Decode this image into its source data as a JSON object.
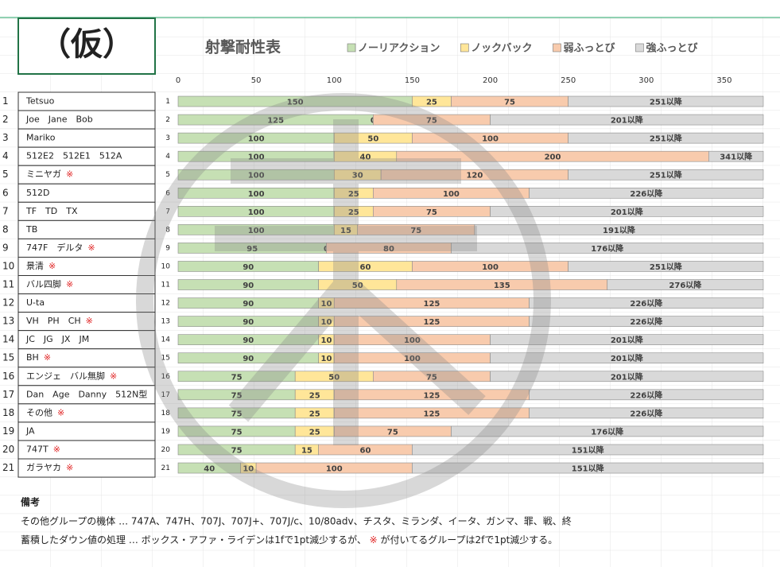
{
  "header": {
    "stamp": "（仮）"
  },
  "chart_data": {
    "type": "bar",
    "orientation": "horizontal",
    "stacked": true,
    "title": "射撃耐性表",
    "categories": [
      "1",
      "2",
      "3",
      "4",
      "5",
      "6",
      "7",
      "8",
      "9",
      "10",
      "11",
      "12",
      "13",
      "14",
      "15",
      "16",
      "17",
      "18",
      "19",
      "20",
      "21"
    ],
    "row_names": [
      {
        "num": "1",
        "name": "Tetsuo"
      },
      {
        "num": "2",
        "name": "Joe　Jane　Bob"
      },
      {
        "num": "3",
        "name": "Mariko"
      },
      {
        "num": "4",
        "name": "512E2　512E1　512A"
      },
      {
        "num": "5",
        "name": "ミニヤガ",
        "mark": "※"
      },
      {
        "num": "6",
        "name": "512D"
      },
      {
        "num": "7",
        "name": "TF　TD　TX"
      },
      {
        "num": "8",
        "name": "TB"
      },
      {
        "num": "9",
        "name": "747F　デルタ",
        "mark": "※"
      },
      {
        "num": "10",
        "name": "景清",
        "mark": "※"
      },
      {
        "num": "11",
        "name": "バル四脚",
        "mark": "※"
      },
      {
        "num": "12",
        "name": "U-ta"
      },
      {
        "num": "13",
        "name": "VH　PH　CH",
        "mark": "※"
      },
      {
        "num": "14",
        "name": "JC　JG　JX　JM"
      },
      {
        "num": "15",
        "name": "BH",
        "mark": "※"
      },
      {
        "num": "16",
        "name": "エンジェ　バル無脚",
        "mark": "※"
      },
      {
        "num": "17",
        "name": "Dan　Age　Danny　512N型"
      },
      {
        "num": "18",
        "name": "その他",
        "mark": "※"
      },
      {
        "num": "19",
        "name": "JA"
      },
      {
        "num": "20",
        "name": "747T",
        "mark": "※"
      },
      {
        "num": "21",
        "name": "ガラヤカ",
        "mark": "※"
      }
    ],
    "series": [
      {
        "name": "ノーリアクション",
        "color": "#c6e0b4",
        "values": [
          150,
          125,
          100,
          100,
          100,
          100,
          100,
          100,
          95,
          90,
          90,
          90,
          90,
          90,
          90,
          75,
          75,
          75,
          75,
          75,
          40
        ]
      },
      {
        "name": "ノックバック",
        "color": "#ffe699",
        "values": [
          25,
          0,
          50,
          40,
          30,
          25,
          25,
          15,
          0,
          60,
          50,
          10,
          10,
          10,
          10,
          50,
          25,
          25,
          25,
          15,
          10
        ]
      },
      {
        "name": "弱ふっとび",
        "color": "#f8cbad",
        "values": [
          75,
          75,
          100,
          200,
          120,
          100,
          75,
          75,
          80,
          100,
          135,
          125,
          125,
          100,
          100,
          75,
          125,
          125,
          75,
          60,
          100
        ]
      },
      {
        "name": "強ふっとび",
        "color": "#d9d9d9",
        "labels": [
          "251以降",
          "201以降",
          "251以降",
          "341以降",
          "251以降",
          "226以降",
          "201以降",
          "191以降",
          "176以降",
          "251以降",
          "276以降",
          "226以降",
          "226以降",
          "201以降",
          "201以降",
          "201以降",
          "226以降",
          "226以降",
          "176以降",
          "151以降",
          "151以降"
        ]
      }
    ],
    "xlim": [
      0,
      375
    ],
    "xticks": [
      0,
      50,
      100,
      150,
      200,
      250,
      300,
      350
    ],
    "grid": false,
    "legend": "top"
  },
  "notes": {
    "title": "備考",
    "lines": [
      "その他グループの機体 … 747A、747H、707J、707J+、707J/c、10/80adv、チスタ、ミランダ、イータ、ガンマ、罪、戦、終",
      {
        "before": "蓄積したダウン値の処理 … ボックス・アファ・ライデンは1fで1pt減少するが、 ",
        "mark": "※",
        "after": " が付いてるグループは2fで1pt減少する。"
      }
    ]
  }
}
